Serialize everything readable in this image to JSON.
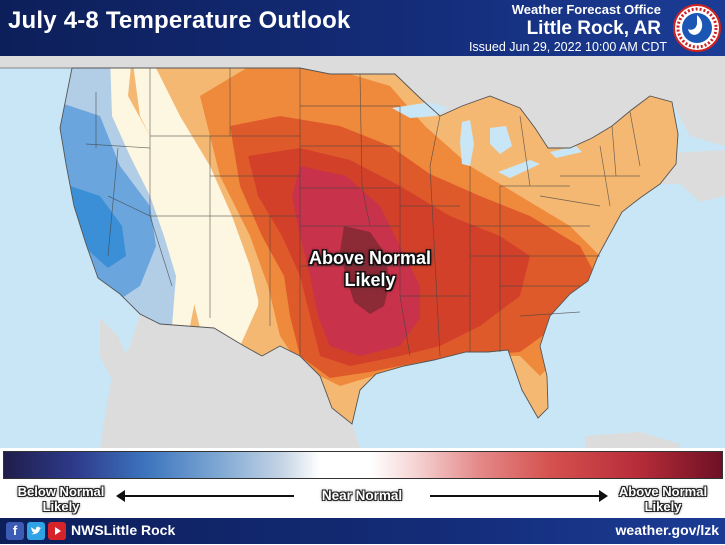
{
  "header": {
    "title": "July 4-8 Temperature Outlook",
    "office_line1": "Weather Forecast Office",
    "office_line2": "Little Rock, AR",
    "issued": "Issued Jun 29, 2022 10:00 AM CDT",
    "logo_icon": "nws-logo-icon"
  },
  "map": {
    "label_line1": "Above Normal",
    "label_line2": "Likely",
    "colors": {
      "water": "#c9e6f6",
      "land_outside": "#d9d9d9",
      "below_strong": "#3a8fd6",
      "below_moderate": "#6aa6dd",
      "below_light": "#b2cde6",
      "near_normal": "#fdf6e0",
      "above_light": "#f5b872",
      "above_moderate": "#ef8a3c",
      "above_high": "#df5a2a",
      "above_higher": "#d2402a",
      "above_strong": "#c8324a",
      "above_max": "#8c2a36"
    }
  },
  "legend": {
    "left_line1": "Below Normal",
    "left_line2": "Likely",
    "middle": "Near Normal",
    "right_line1": "Above Normal",
    "right_line2": "Likely"
  },
  "footer": {
    "facebook_icon": "facebook-icon",
    "twitter_icon": "twitter-icon",
    "youtube_icon": "youtube-icon",
    "handle": "NWSLittle Rock",
    "website": "weather.gov/lzk"
  }
}
